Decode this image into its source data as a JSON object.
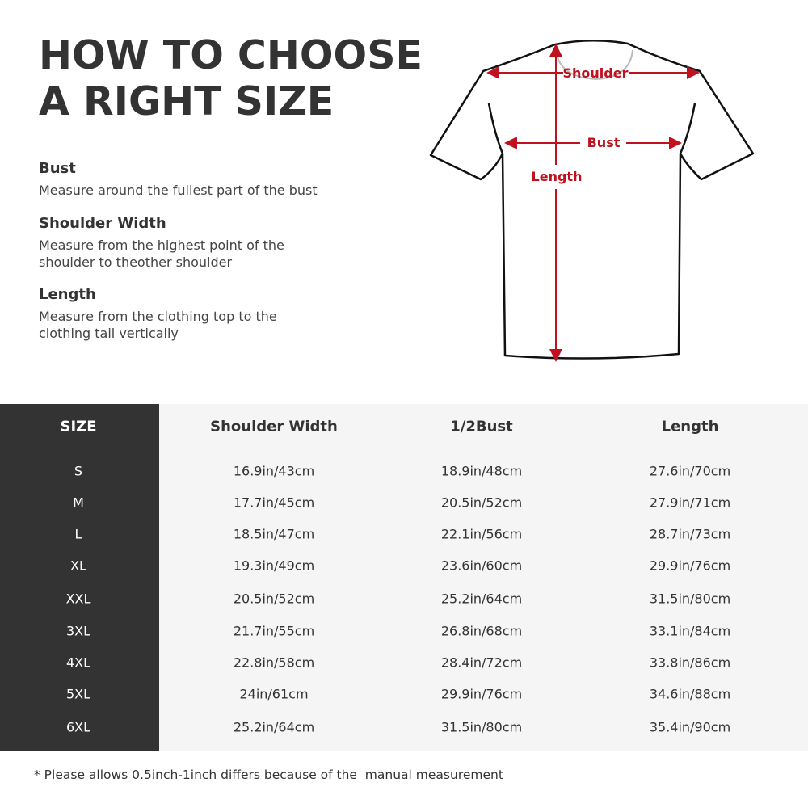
{
  "title": {
    "line1": "HOW TO CHOOSE",
    "line2": "A RIGHT SIZE"
  },
  "measures": [
    {
      "name": "Bust",
      "text": "Measure around the fullest part of the bust"
    },
    {
      "name": "Shoulder Width",
      "text": "Measure from the highest point of the shoulder to theother shoulder"
    },
    {
      "name": "Length",
      "text": "Measure from the clothing top to the clothing tail vertically"
    }
  ],
  "diagram": {
    "shoulder_label": "Shoulder",
    "bust_label": "Bust",
    "length_label": "Length",
    "accent_color": "#c0111f"
  },
  "table": {
    "headers": [
      "SIZE",
      "Shoulder Width",
      "1/2Bust",
      "Length"
    ],
    "rows": [
      [
        "S",
        "16.9in/43cm",
        "18.9in/48cm",
        "27.6in/70cm"
      ],
      [
        "M",
        "17.7in/45cm",
        "20.5in/52cm",
        "27.9in/71cm"
      ],
      [
        "L",
        "18.5in/47cm",
        "22.1in/56cm",
        "28.7in/73cm"
      ],
      [
        "XL",
        "19.3in/49cm",
        "23.6in/60cm",
        "29.9in/76cm"
      ],
      [
        "XXL",
        "20.5in/52cm",
        "25.2in/64cm",
        "31.5in/80cm"
      ],
      [
        "3XL",
        "21.7in/55cm",
        "26.8in/68cm",
        "33.1in/84cm"
      ],
      [
        "4XL",
        "22.8in/58cm",
        "28.4in/72cm",
        "33.8in/86cm"
      ],
      [
        "5XL",
        "24in/61cm",
        "29.9in/76cm",
        "34.6in/88cm"
      ],
      [
        "6XL",
        "25.2in/64cm",
        "31.5in/80cm",
        "35.4in/90cm"
      ]
    ]
  },
  "footnote": "* Please allows 0.5inch-1inch differs because of the  manual measurement"
}
